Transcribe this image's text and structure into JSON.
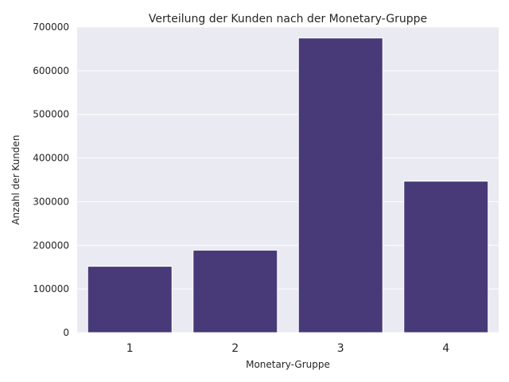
{
  "chart_data": {
    "type": "bar",
    "title": "Verteilung der Kunden nach der Monetary-Gruppe",
    "xlabel": "Monetary-Gruppe",
    "ylabel": "Anzahl der Kunden",
    "categories": [
      "1",
      "2",
      "3",
      "4"
    ],
    "values": [
      152000,
      189000,
      675000,
      347000
    ],
    "ylim": [
      0,
      700000
    ],
    "yticks": [
      0,
      100000,
      200000,
      300000,
      400000,
      500000,
      600000,
      700000
    ],
    "ytick_labels": [
      "0",
      "100000",
      "200000",
      "300000",
      "400000",
      "500000",
      "600000",
      "700000"
    ],
    "grid": true,
    "legend": false,
    "colors": {
      "background": "#eaeaf2",
      "bar": "#483a78",
      "grid": "#ffffff"
    }
  }
}
